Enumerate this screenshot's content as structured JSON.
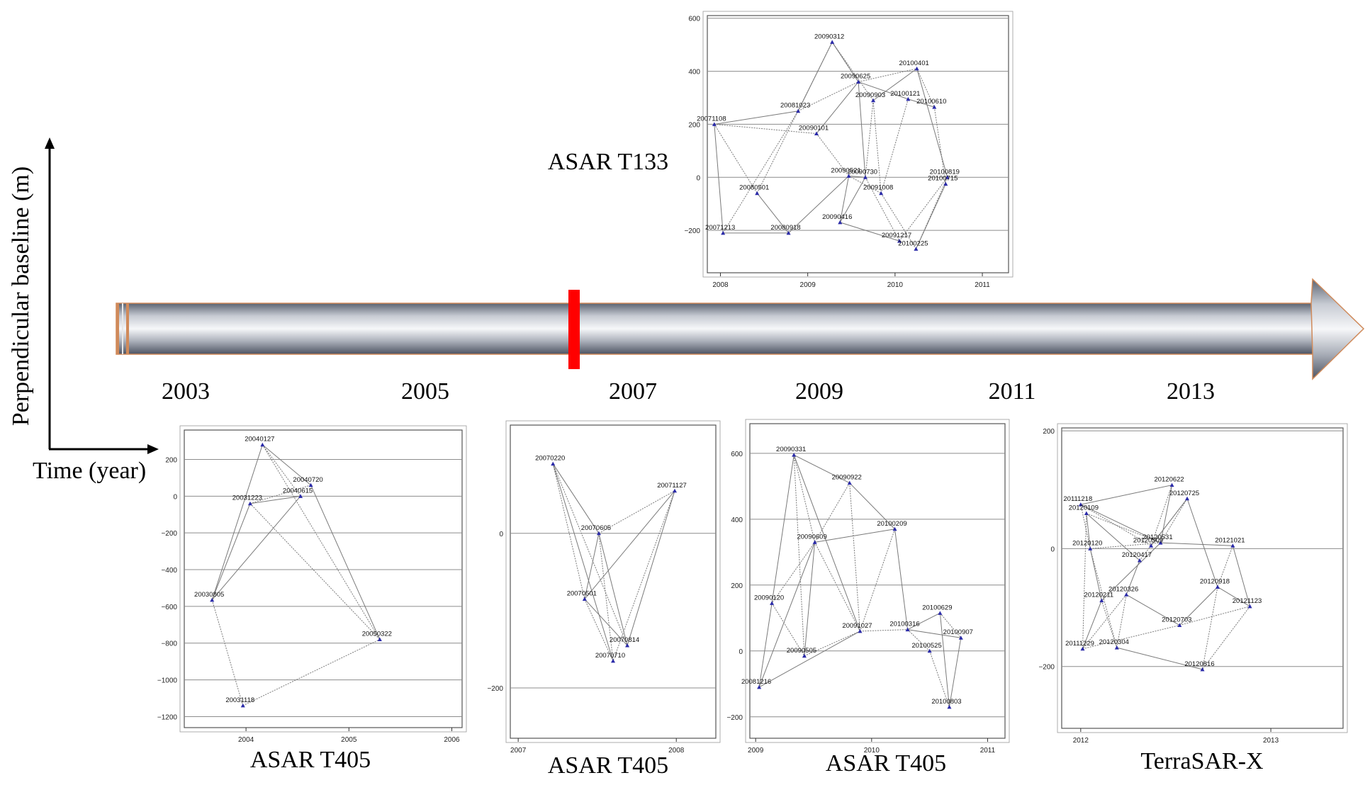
{
  "axis_labels": {
    "y": "Perpendicular baseline (m)",
    "x": "Time (year)"
  },
  "timeline": {
    "years": [
      "2003",
      "2005",
      "2007",
      "2009",
      "2011",
      "2013"
    ],
    "marker_color": "#ff0000"
  },
  "colors": {
    "point": "#2a2aa8",
    "grid": "#8c8c8c",
    "edge": "#7a7a7a"
  },
  "chart_data": [
    {
      "id": "t133",
      "type": "scatter",
      "label": "ASAR T133",
      "xlim": [
        2007.85,
        2011.3
      ],
      "ylim": [
        -360,
        610
      ],
      "yticks": [
        -200,
        0,
        200,
        400,
        600
      ],
      "xticks": [
        2008,
        2009,
        2010,
        2011
      ],
      "grid": "horizontal",
      "points": [
        {
          "name": "20090312",
          "x": 2009.28,
          "y": 510
        },
        {
          "name": "20100401",
          "x": 2010.25,
          "y": 410
        },
        {
          "name": "20090625",
          "x": 2009.58,
          "y": 360
        },
        {
          "name": "20090903",
          "x": 2009.75,
          "y": 290
        },
        {
          "name": "20100121",
          "x": 2010.15,
          "y": 295
        },
        {
          "name": "20100610",
          "x": 2010.45,
          "y": 265
        },
        {
          "name": "20081023",
          "x": 2008.89,
          "y": 250
        },
        {
          "name": "20071108",
          "x": 2007.93,
          "y": 200
        },
        {
          "name": "20090101",
          "x": 2009.1,
          "y": 165
        },
        {
          "name": "20090521",
          "x": 2009.47,
          "y": 5
        },
        {
          "name": "20090730",
          "x": 2009.66,
          "y": 0
        },
        {
          "name": "20100819",
          "x": 2010.6,
          "y": 0
        },
        {
          "name": "20100715",
          "x": 2010.58,
          "y": -25
        },
        {
          "name": "20091008",
          "x": 2009.84,
          "y": -60
        },
        {
          "name": "20080501",
          "x": 2008.42,
          "y": -60
        },
        {
          "name": "20090416",
          "x": 2009.37,
          "y": -170
        },
        {
          "name": "20071213",
          "x": 2008.03,
          "y": -210
        },
        {
          "name": "20080918",
          "x": 2008.78,
          "y": -210
        },
        {
          "name": "20091217",
          "x": 2010.05,
          "y": -240
        },
        {
          "name": "20100225",
          "x": 2010.24,
          "y": -270
        }
      ],
      "edges": [
        [
          "20071108",
          "20071213"
        ],
        [
          "20071108",
          "20080501"
        ],
        [
          "20071108",
          "20081023"
        ],
        [
          "20071108",
          "20090101"
        ],
        [
          "20071213",
          "20080918"
        ],
        [
          "20071213",
          "20081023"
        ],
        [
          "20080501",
          "20080918"
        ],
        [
          "20080501",
          "20090312"
        ],
        [
          "20081023",
          "20090312"
        ],
        [
          "20081023",
          "20090625"
        ],
        [
          "20090101",
          "20090625"
        ],
        [
          "20090101",
          "20090521"
        ],
        [
          "20090312",
          "20090625"
        ],
        [
          "20090312",
          "20090903"
        ],
        [
          "20090625",
          "20090730"
        ],
        [
          "20090625",
          "20100401"
        ],
        [
          "20090625",
          "20100121"
        ],
        [
          "20090903",
          "20090730"
        ],
        [
          "20090903",
          "20100401"
        ],
        [
          "20090903",
          "20091008"
        ],
        [
          "20100121",
          "20100610"
        ],
        [
          "20100401",
          "20100610"
        ],
        [
          "20100401",
          "20100819"
        ],
        [
          "20100610",
          "20100715"
        ],
        [
          "20090521",
          "20090730"
        ],
        [
          "20090521",
          "20091008"
        ],
        [
          "20090521",
          "20090416"
        ],
        [
          "20090730",
          "20091217"
        ],
        [
          "20090730",
          "20090416"
        ],
        [
          "20091008",
          "20100225"
        ],
        [
          "20090416",
          "20091217"
        ],
        [
          "20091217",
          "20100819"
        ],
        [
          "20100225",
          "20100715"
        ],
        [
          "20100225",
          "20100819"
        ],
        [
          "20080918",
          "20090521"
        ],
        [
          "20091008",
          "20100121"
        ]
      ]
    },
    {
      "id": "t405a",
      "type": "scatter",
      "label": "ASAR T405",
      "xlim": [
        2003.4,
        2006.1
      ],
      "ylim": [
        -1260,
        360
      ],
      "yticks": [
        -1200,
        -1000,
        -800,
        -600,
        -400,
        -200,
        0,
        200
      ],
      "xticks": [
        2004,
        2005,
        2006
      ],
      "grid": "horizontal",
      "points": [
        {
          "name": "20040127",
          "x": 2004.16,
          "y": 280
        },
        {
          "name": "20040720",
          "x": 2004.63,
          "y": 60
        },
        {
          "name": "20040615",
          "x": 2004.53,
          "y": 0
        },
        {
          "name": "20031223",
          "x": 2004.04,
          "y": -40
        },
        {
          "name": "20030805",
          "x": 2003.67,
          "y": -565
        },
        {
          "name": "20050322",
          "x": 2005.3,
          "y": -780
        },
        {
          "name": "20031118",
          "x": 2003.97,
          "y": -1140
        }
      ],
      "edges": [
        [
          "20040127",
          "20040720"
        ],
        [
          "20040127",
          "20040615"
        ],
        [
          "20040127",
          "20030805"
        ],
        [
          "20040127",
          "20050322"
        ],
        [
          "20031223",
          "20040615"
        ],
        [
          "20031223",
          "20040720"
        ],
        [
          "20031223",
          "20030805"
        ],
        [
          "20031223",
          "20050322"
        ],
        [
          "20030805",
          "20040615"
        ],
        [
          "20030805",
          "20031118"
        ],
        [
          "20040720",
          "20050322"
        ],
        [
          "20031118",
          "20050322"
        ]
      ]
    },
    {
      "id": "t405b",
      "type": "scatter",
      "label": "ASAR T405",
      "xlim": [
        2006.95,
        2008.25
      ],
      "ylim": [
        -265,
        140
      ],
      "yticks": [
        -200,
        0
      ],
      "xticks": [
        2007,
        2008
      ],
      "grid": "horizontal",
      "points": [
        {
          "name": "20070220",
          "x": 2007.22,
          "y": 90
        },
        {
          "name": "20071127",
          "x": 2007.99,
          "y": 55
        },
        {
          "name": "20070605",
          "x": 2007.51,
          "y": 0
        },
        {
          "name": "20070501",
          "x": 2007.42,
          "y": -85
        },
        {
          "name": "20070814",
          "x": 2007.69,
          "y": -145
        },
        {
          "name": "20070710",
          "x": 2007.6,
          "y": -165
        }
      ],
      "edges": [
        [
          "20070220",
          "20070605"
        ],
        [
          "20070220",
          "20070501"
        ],
        [
          "20070220",
          "20070710"
        ],
        [
          "20070220",
          "20070814"
        ],
        [
          "20070605",
          "20070501"
        ],
        [
          "20070605",
          "20070710"
        ],
        [
          "20070605",
          "20070814"
        ],
        [
          "20070605",
          "20071127"
        ],
        [
          "20070501",
          "20071127"
        ],
        [
          "20070501",
          "20070710"
        ],
        [
          "20070501",
          "20070814"
        ],
        [
          "20071127",
          "20070710"
        ],
        [
          "20071127",
          "20070814"
        ]
      ]
    },
    {
      "id": "t405c",
      "type": "scatter",
      "label": "ASAR T405",
      "xlim": [
        2008.95,
        2011.15
      ],
      "ylim": [
        -265,
        690
      ],
      "yticks": [
        -200,
        0,
        200,
        400,
        600
      ],
      "xticks": [
        2009,
        2010,
        2011
      ],
      "grid": "horizontal",
      "points": [
        {
          "name": "20090331",
          "x": 2009.33,
          "y": 595
        },
        {
          "name": "20090922",
          "x": 2009.81,
          "y": 510
        },
        {
          "name": "20100209",
          "x": 2010.2,
          "y": 370
        },
        {
          "name": "20090609",
          "x": 2009.51,
          "y": 330
        },
        {
          "name": "20090120",
          "x": 2009.14,
          "y": 145
        },
        {
          "name": "20100629",
          "x": 2010.59,
          "y": 115
        },
        {
          "name": "20100316",
          "x": 2010.31,
          "y": 65
        },
        {
          "name": "20091027",
          "x": 2009.9,
          "y": 60
        },
        {
          "name": "20100907",
          "x": 2010.77,
          "y": 40
        },
        {
          "name": "20100525",
          "x": 2010.5,
          "y": 0
        },
        {
          "name": "20090505",
          "x": 2009.42,
          "y": -15
        },
        {
          "name": "20081216",
          "x": 2009.03,
          "y": -110
        },
        {
          "name": "20100803",
          "x": 2010.67,
          "y": -170
        }
      ],
      "edges": [
        [
          "20090331",
          "20090922"
        ],
        [
          "20090331",
          "20090609"
        ],
        [
          "20090331",
          "20090120"
        ],
        [
          "20090331",
          "20090505"
        ],
        [
          "20090331",
          "20091027"
        ],
        [
          "20090922",
          "20090609"
        ],
        [
          "20090922",
          "20100209"
        ],
        [
          "20090922",
          "20091027"
        ],
        [
          "20090609",
          "20100209"
        ],
        [
          "20090609",
          "20090120"
        ],
        [
          "20090609",
          "20090505"
        ],
        [
          "20090609",
          "20091027"
        ],
        [
          "20090609",
          "20081216"
        ],
        [
          "20090120",
          "20090505"
        ],
        [
          "20090120",
          "20081216"
        ],
        [
          "20100209",
          "20091027"
        ],
        [
          "20100209",
          "20100316"
        ],
        [
          "20091027",
          "20100316"
        ],
        [
          "20091027",
          "20081216"
        ],
        [
          "20091027",
          "20090505"
        ],
        [
          "20100316",
          "20100629"
        ],
        [
          "20100316",
          "20100525"
        ],
        [
          "20100316",
          "20100907"
        ],
        [
          "20100629",
          "20100907"
        ],
        [
          "20100629",
          "20100803"
        ],
        [
          "20100525",
          "20100803"
        ],
        [
          "20100907",
          "20100803"
        ]
      ]
    },
    {
      "id": "tsx",
      "type": "scatter",
      "label": "TerraSAR-X",
      "xlim": [
        2011.9,
        2013.38
      ],
      "ylim": [
        -305,
        205
      ],
      "yticks": [
        -200,
        0,
        200
      ],
      "xticks": [
        2012,
        2013
      ],
      "grid": "horizontal",
      "points": [
        {
          "name": "20120622",
          "x": 2012.48,
          "y": 108
        },
        {
          "name": "20111218",
          "x": 2012.0,
          "y": 75
        },
        {
          "name": "20120725",
          "x": 2012.56,
          "y": 85
        },
        {
          "name": "20120109",
          "x": 2012.03,
          "y": 60
        },
        {
          "name": "20120531",
          "x": 2012.42,
          "y": 10
        },
        {
          "name": "20120509",
          "x": 2012.37,
          "y": 5
        },
        {
          "name": "20120120",
          "x": 2012.05,
          "y": 0
        },
        {
          "name": "20121021",
          "x": 2012.8,
          "y": 5
        },
        {
          "name": "20120417",
          "x": 2012.31,
          "y": -20
        },
        {
          "name": "20120918",
          "x": 2012.72,
          "y": -65
        },
        {
          "name": "20120326",
          "x": 2012.24,
          "y": -78
        },
        {
          "name": "20120211",
          "x": 2012.11,
          "y": -88
        },
        {
          "name": "20121123",
          "x": 2012.89,
          "y": -98
        },
        {
          "name": "20120703",
          "x": 2012.52,
          "y": -130
        },
        {
          "name": "20111229",
          "x": 2012.01,
          "y": -170
        },
        {
          "name": "20120304",
          "x": 2012.19,
          "y": -168
        },
        {
          "name": "20120816",
          "x": 2012.64,
          "y": -205
        }
      ],
      "edges": [
        [
          "20111218",
          "20120622"
        ],
        [
          "20111218",
          "20120509"
        ],
        [
          "20111218",
          "20120531"
        ],
        [
          "20111218",
          "20120120"
        ],
        [
          "20120109",
          "20120417"
        ],
        [
          "20120109",
          "20120531"
        ],
        [
          "20120109",
          "20120120"
        ],
        [
          "20120109",
          "20111229"
        ],
        [
          "20120622",
          "20120531"
        ],
        [
          "20120622",
          "20120509"
        ],
        [
          "20120725",
          "20120509"
        ],
        [
          "20120725",
          "20120531"
        ],
        [
          "20120725",
          "20120918"
        ],
        [
          "20120725",
          "20120417"
        ],
        [
          "20120531",
          "20121021"
        ],
        [
          "20120120",
          "20120531"
        ],
        [
          "20120120",
          "20120211"
        ],
        [
          "20120120",
          "20120304"
        ],
        [
          "20120417",
          "20120326"
        ],
        [
          "20120326",
          "20111229"
        ],
        [
          "20120326",
          "20120703"
        ],
        [
          "20120326",
          "20120304"
        ],
        [
          "20120211",
          "20111229"
        ],
        [
          "20120211",
          "20120304"
        ],
        [
          "20120211",
          "20120531"
        ],
        [
          "20111229",
          "20120703"
        ],
        [
          "20120703",
          "20120918"
        ],
        [
          "20120703",
          "20121123"
        ],
        [
          "20120918",
          "20121123"
        ],
        [
          "20120918",
          "20120816"
        ],
        [
          "20121021",
          "20121123"
        ],
        [
          "20121123",
          "20120816"
        ],
        [
          "20120304",
          "20120816"
        ],
        [
          "20121021",
          "20120918"
        ]
      ]
    }
  ]
}
